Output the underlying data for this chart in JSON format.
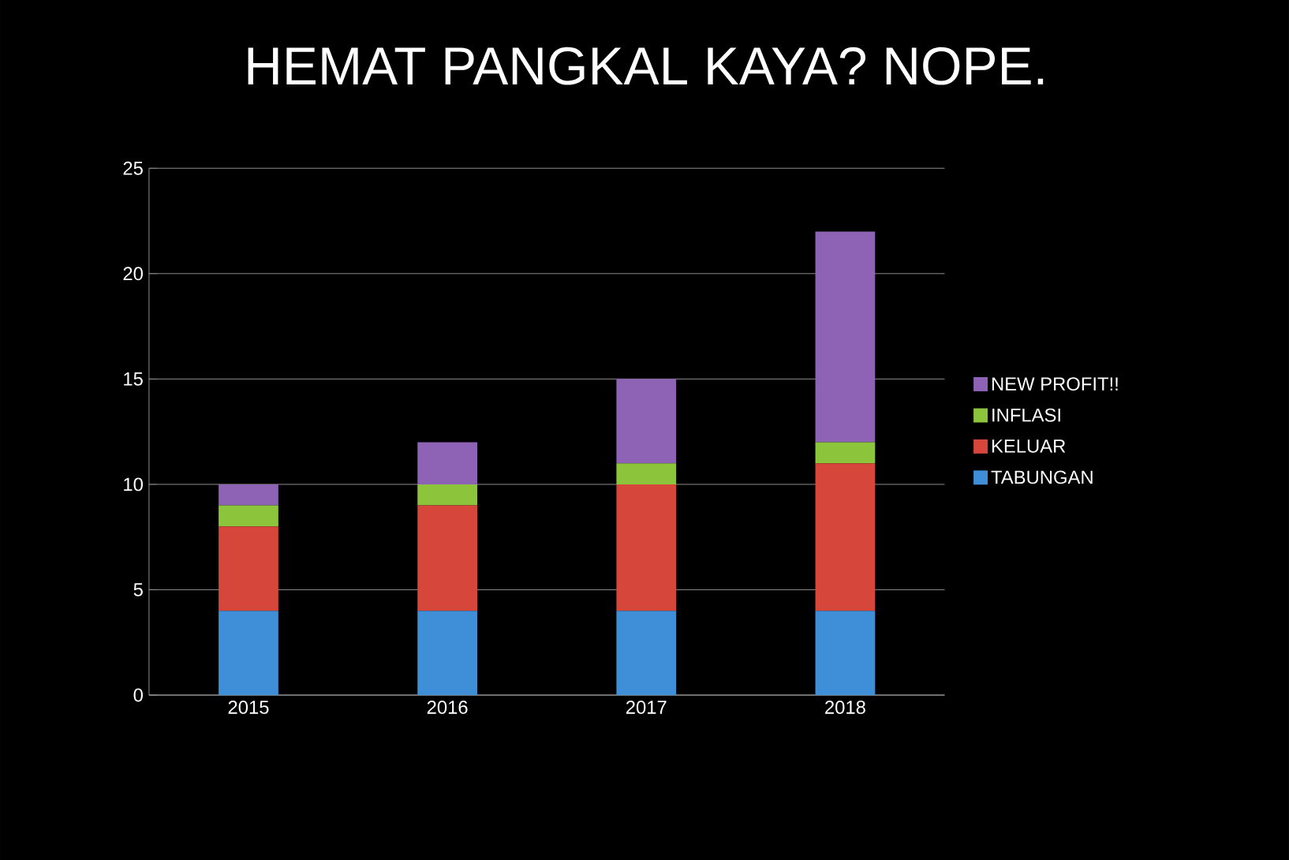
{
  "chart_data": {
    "type": "bar",
    "title": "HEMAT PANGKAL KAYA? NOPE.",
    "stacked": true,
    "categories": [
      "2015",
      "2016",
      "2017",
      "2018"
    ],
    "series": [
      {
        "name": "TABUNGAN",
        "color": "#3f8fd8",
        "values": [
          4,
          4,
          4,
          4
        ]
      },
      {
        "name": "KELUAR",
        "color": "#d6463a",
        "values": [
          4,
          5,
          6,
          7
        ]
      },
      {
        "name": "INFLASI",
        "color": "#8cc43c",
        "values": [
          1,
          1,
          1,
          1
        ]
      },
      {
        "name": "NEW PROFIT!!",
        "color": "#8e62b4",
        "values": [
          1,
          2,
          4,
          10
        ]
      }
    ],
    "ylim": [
      0,
      25
    ],
    "yticks": [
      0,
      5,
      10,
      15,
      20,
      25
    ],
    "grid": "y",
    "legend": "right"
  }
}
